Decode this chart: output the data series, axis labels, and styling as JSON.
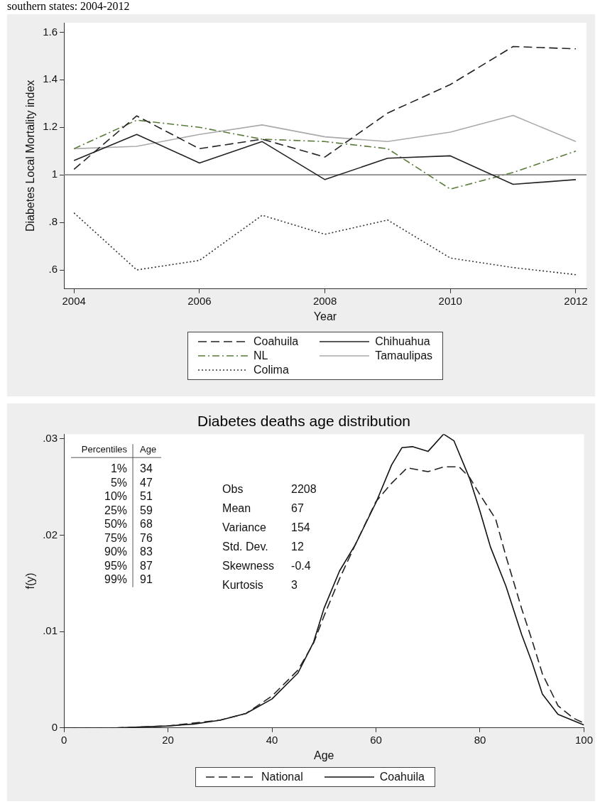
{
  "chart_data": [
    {
      "type": "line",
      "title": "southern states: 2004-2012",
      "xlabel": "Year",
      "ylabel": "Diabetes Local Mortality index",
      "x": [
        2004,
        2005,
        2006,
        2007,
        2008,
        2009,
        2010,
        2011,
        2012
      ],
      "xlim": [
        2003.84,
        2012.17
      ],
      "xticks": [
        2004,
        2006,
        2008,
        2010,
        2012
      ],
      "ylim": [
        0.52,
        1.64
      ],
      "yticks": [
        {
          "value": 0.6,
          "label": ".6"
        },
        {
          "value": 0.8,
          "label": ".8"
        },
        1,
        1.2,
        1.4,
        1.6
      ],
      "grid": false,
      "legend": "bottom",
      "marker": "none",
      "ref_lines": [
        {
          "axis": "y",
          "value": 1,
          "color": "#888888"
        }
      ],
      "series": [
        {
          "name": "Coahuila",
          "color": "#222222",
          "line_style": "dashed",
          "values": [
            1.023,
            1.248,
            1.11,
            1.15,
            1.075,
            1.26,
            1.38,
            1.54,
            1.53
          ]
        },
        {
          "name": "Chihuahua",
          "color": "#222222",
          "line_style": "solid",
          "values": [
            1.06,
            1.17,
            1.05,
            1.14,
            0.98,
            1.07,
            1.08,
            0.96,
            0.98
          ]
        },
        {
          "name": "NL",
          "color": "#5a7a3a",
          "line_style": "dashdot",
          "values": [
            1.11,
            1.23,
            1.2,
            1.15,
            1.14,
            1.11,
            0.94,
            1.01,
            1.1
          ]
        },
        {
          "name": "Tamaulipas",
          "color": "#aaaaaa",
          "line_style": "solid",
          "values": [
            1.11,
            1.12,
            1.17,
            1.21,
            1.16,
            1.14,
            1.18,
            1.25,
            1.14
          ]
        },
        {
          "name": "Colima",
          "color": "#333333",
          "line_style": "dotted",
          "values": [
            0.84,
            0.6,
            0.64,
            0.83,
            0.75,
            0.81,
            0.65,
            0.61,
            0.58
          ]
        }
      ]
    },
    {
      "type": "line",
      "title": "Diabetes deaths age distribution",
      "xlabel": "Age",
      "ylabel": "f(y)",
      "xlim": [
        0,
        100
      ],
      "xticks": [
        0,
        20,
        40,
        60,
        80,
        100
      ],
      "ylim": [
        0,
        0.0305
      ],
      "yticks": [
        0,
        {
          "value": 0.01,
          "label": ".01"
        },
        {
          "value": 0.02,
          "label": ".02"
        },
        {
          "value": 0.03,
          "label": ".03"
        }
      ],
      "grid": false,
      "legend": "bottom",
      "marker": "none",
      "annotations": [
        "Percentiles",
        "Age",
        "1%",
        "34",
        "5%",
        "47",
        "10%",
        "51",
        "25%",
        "59",
        "50%",
        "68",
        "75%",
        "76",
        "90%",
        "83",
        "95%",
        "87",
        "99%",
        "91",
        "Obs",
        "2208",
        "Mean",
        "67",
        "Variance",
        "154",
        "Std. Dev.",
        "12",
        "Skewness",
        "-0.4",
        "Kurtosis",
        "3"
      ],
      "series": [
        {
          "name": "National",
          "color": "#222222",
          "line_style": "dashed",
          "x": [
            0,
            10,
            20,
            30,
            35,
            40,
            45,
            48,
            50,
            53,
            56,
            60,
            63,
            66,
            70,
            73,
            76,
            78,
            80,
            83,
            85,
            88,
            90,
            92,
            95,
            98,
            100
          ],
          "values": [
            0,
            0,
            0.0002,
            0.0008,
            0.0015,
            0.0033,
            0.006,
            0.0088,
            0.0116,
            0.0155,
            0.019,
            0.0235,
            0.0254,
            0.027,
            0.0266,
            0.0271,
            0.0271,
            0.026,
            0.0242,
            0.0217,
            0.0178,
            0.0124,
            0.0091,
            0.0056,
            0.0023,
            0.001,
            0.0005
          ]
        },
        {
          "name": "Coahuila",
          "color": "#111111",
          "line_style": "solid",
          "x": [
            0,
            10,
            20,
            25,
            30,
            35,
            40,
            45,
            48,
            50,
            53,
            56,
            60,
            63,
            65,
            67,
            70,
            73,
            75,
            78,
            80,
            82,
            85,
            88,
            90,
            92,
            95,
            100
          ],
          "values": [
            0,
            0,
            0.0002,
            0.0004,
            0.0008,
            0.0015,
            0.003,
            0.0057,
            0.0089,
            0.0124,
            0.0163,
            0.019,
            0.0234,
            0.0273,
            0.0291,
            0.0292,
            0.0287,
            0.0305,
            0.0298,
            0.0259,
            0.0225,
            0.0188,
            0.0147,
            0.0097,
            0.0068,
            0.0035,
            0.0014,
            0.0003
          ]
        }
      ]
    }
  ]
}
